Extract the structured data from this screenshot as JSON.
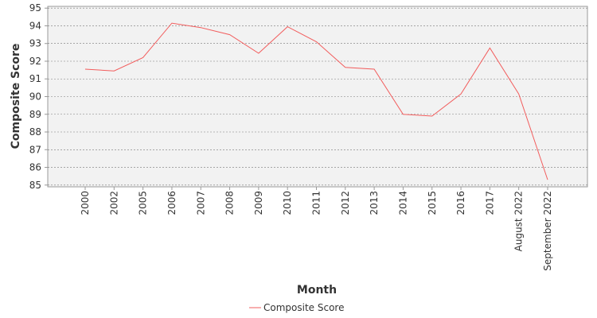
{
  "chart_data": {
    "type": "line",
    "categories": [
      "2000",
      "2002",
      "2005",
      "2006",
      "2007",
      "2008",
      "2009",
      "2010",
      "2011",
      "2012",
      "2013",
      "2014",
      "2015",
      "2016",
      "2017",
      "August 2022",
      "September 2022"
    ],
    "series": [
      {
        "name": "Composite Score",
        "color": "#f25c5c",
        "values": [
          91.55,
          91.45,
          92.2,
          94.15,
          93.9,
          93.5,
          92.45,
          93.95,
          93.1,
          91.65,
          91.55,
          89.0,
          88.9,
          90.15,
          92.75,
          90.15,
          85.3
        ]
      }
    ],
    "xlabel": "Month",
    "ylabel": "Composite Score",
    "ylim": [
      84.9,
      95.1
    ],
    "yticks": [
      85,
      86,
      87,
      88,
      89,
      90,
      91,
      92,
      93,
      94,
      95
    ],
    "grid": true,
    "legend": "bottom-center"
  }
}
